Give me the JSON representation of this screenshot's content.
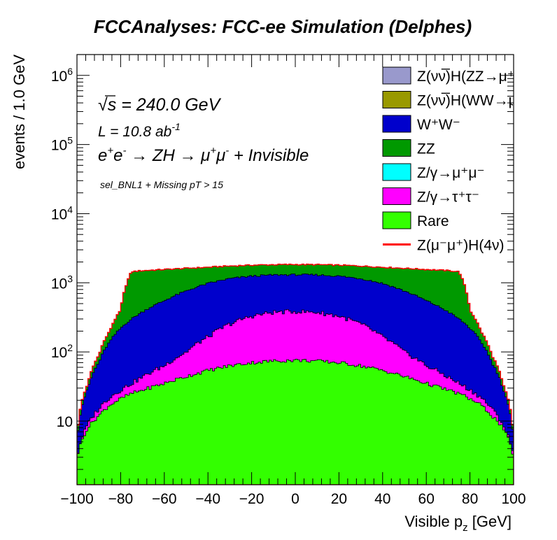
{
  "chart_data": {
    "type": "area",
    "title": "FCCAnalyses: FCC-ee Simulation (Delphes)",
    "xlabel": "Visible p",
    "xlabel_sub": "z",
    "xlabel_unit": "[GeV]",
    "ylabel": "events / 1.0 GeV",
    "xlim": [
      -100,
      100
    ],
    "ylim": [
      1.2,
      2000000
    ],
    "yscale": "log",
    "x_ticks": [
      -100,
      -80,
      -60,
      -40,
      -20,
      0,
      20,
      40,
      60,
      80,
      100
    ],
    "y_ticks": [
      {
        "value": 10,
        "base": "10",
        "exp": ""
      },
      {
        "value": 100,
        "base": "10",
        "exp": "2"
      },
      {
        "value": 1000,
        "base": "10",
        "exp": "3"
      },
      {
        "value": 10000,
        "base": "10",
        "exp": "4"
      },
      {
        "value": 100000,
        "base": "10",
        "exp": "5"
      },
      {
        "value": 1000000,
        "base": "10",
        "exp": "6"
      }
    ],
    "legend_position": "top-right",
    "annotations": {
      "sqrt": "s",
      "energy": "= 240.0 GeV",
      "lumi": "L = 10.8 ab",
      "lumi_exp": "-1",
      "process_a": "e",
      "process_b": "e",
      "process_c": "→ ZH → μ",
      "process_d": "μ",
      "process_e": "+ Invisible",
      "selection": "sel_BNL1 + Missing pT > 15"
    },
    "x": [
      -100,
      -95,
      -90,
      -85,
      -80,
      -75,
      -70,
      -60,
      -50,
      -40,
      -30,
      -20,
      -10,
      0,
      10,
      20,
      30,
      40,
      50,
      60,
      70,
      75,
      80,
      85,
      90,
      95,
      100
    ],
    "series": [
      {
        "name": "Rare",
        "legend": "Rare",
        "color": "#33ff00",
        "values": [
          3,
          8,
          12,
          17,
          21,
          25,
          28,
          35,
          44,
          54,
          63,
          70,
          74,
          76,
          74,
          70,
          63,
          54,
          44,
          35,
          28,
          25,
          21,
          17,
          12,
          8,
          3
        ]
      },
      {
        "name": "Z/γ→τ⁺τ⁻",
        "legend": "Z/γ→τ⁺τ⁻",
        "color": "#ff00ff",
        "values": [
          0,
          1,
          3,
          5,
          7,
          10,
          15,
          28,
          55,
          110,
          190,
          260,
          300,
          310,
          300,
          260,
          190,
          110,
          55,
          28,
          15,
          10,
          7,
          5,
          3,
          1,
          0
        ]
      },
      {
        "name": "Z/γ→μ⁺μ⁻",
        "legend": "Z/γ→μ⁺μ⁻",
        "color": "#00ffff",
        "values": [
          0,
          0,
          0,
          0,
          0,
          0,
          0,
          0,
          0,
          0,
          0,
          0,
          0,
          0,
          0,
          0,
          0,
          0,
          0,
          0,
          0,
          0,
          0,
          0,
          0,
          0,
          0
        ]
      },
      {
        "name": "ZZ",
        "legend": "ZZ",
        "color": "#009900",
        "values": [
          0,
          0,
          0,
          0,
          0,
          0,
          0,
          0,
          0,
          0,
          0,
          0,
          0,
          0,
          0,
          0,
          0,
          0,
          0,
          0,
          0,
          0,
          0,
          0,
          0,
          0,
          0
        ]
      },
      {
        "name": "W⁺W⁻",
        "legend": "W⁺W⁻",
        "color": "#0000cc",
        "values": [
          0,
          0,
          0,
          0,
          0,
          0,
          0,
          0,
          0,
          0,
          0,
          0,
          0,
          0,
          0,
          0,
          0,
          0,
          0,
          0,
          0,
          0,
          0,
          0,
          0,
          0,
          0
        ]
      },
      {
        "name": "Z(νν̅)H(WW→μ⁺νμ)",
        "legend": "Z(νν̅)H(WW→μ⁺νμ",
        "color": "#999900",
        "values": [
          0,
          0,
          0,
          0,
          0,
          0,
          0,
          0,
          0,
          0,
          0,
          0,
          0,
          0,
          0,
          0,
          0,
          0,
          0,
          0,
          0,
          0,
          0,
          0,
          0,
          0,
          0
        ]
      },
      {
        "name": "Z(νν̅)H(ZZ→μ⁺μ⁻νν)",
        "legend": "Z(νν̅)H(ZZ→μ⁺μ⁻ν",
        "color": "#9999cc",
        "values": [
          0,
          0,
          0,
          0,
          0,
          0,
          0,
          0,
          0,
          0,
          0,
          0,
          0,
          0,
          0,
          0,
          0,
          0,
          0,
          0,
          0,
          0,
          0,
          0,
          0,
          0,
          0
        ]
      }
    ],
    "stack_totals": {
      "Rare": [
        3,
        8,
        12,
        17,
        21,
        25,
        28,
        35,
        44,
        54,
        63,
        70,
        74,
        76,
        74,
        70,
        63,
        54,
        44,
        35,
        28,
        25,
        21,
        17,
        12,
        8,
        3
      ],
      "tau": [
        3,
        9,
        15,
        22,
        28,
        35,
        43,
        63,
        99,
        164,
        253,
        330,
        374,
        386,
        374,
        330,
        253,
        164,
        99,
        63,
        43,
        35,
        28,
        22,
        15,
        9,
        3
      ],
      "WW": [
        5,
        30,
        70,
        140,
        220,
        300,
        380,
        550,
        760,
        980,
        1150,
        1250,
        1300,
        1310,
        1300,
        1250,
        1150,
        980,
        760,
        550,
        380,
        300,
        220,
        140,
        70,
        30,
        5
      ],
      "ZZ": [
        6,
        35,
        90,
        200,
        400,
        1450,
        1500,
        1560,
        1620,
        1680,
        1750,
        1800,
        1830,
        1840,
        1830,
        1800,
        1750,
        1680,
        1620,
        1560,
        1500,
        1450,
        400,
        200,
        90,
        35,
        6
      ]
    },
    "signal": {
      "name": "Z(μ⁻μ⁺)H(4ν)",
      "legend": "Z(μ⁻μ⁺)H(4ν)",
      "color": "#ff0000",
      "line": "total stack outline"
    }
  }
}
